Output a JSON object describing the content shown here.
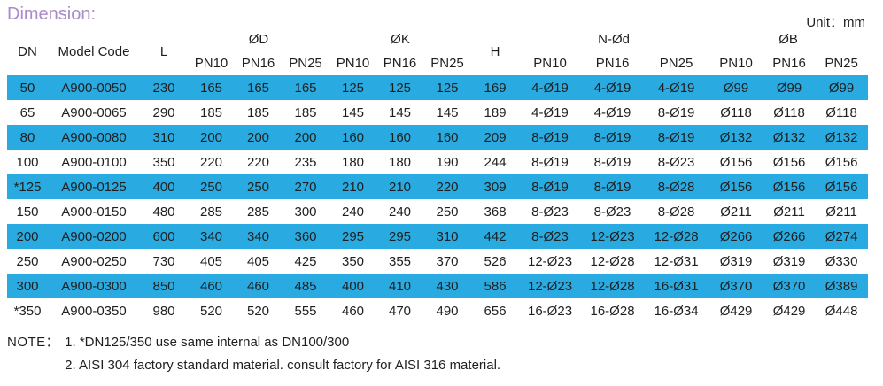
{
  "title": "Dimension:",
  "unit_label": "Unit：mm",
  "colors": {
    "row_highlight": "#29abe2",
    "title_color": "#a88bc9",
    "text_color": "#1f1f1f"
  },
  "table": {
    "headers": {
      "dn": "DN",
      "model_code": "Model Code",
      "l": "L",
      "od": "ØD",
      "ok": "ØK",
      "h": "H",
      "nod": "N-Ød",
      "ob": "ØB"
    },
    "pn_labels": [
      "PN10",
      "PN16",
      "PN25"
    ],
    "rows": [
      {
        "dn": "50",
        "model": "A900-0050",
        "l": "230",
        "od": [
          "165",
          "165",
          "165"
        ],
        "ok": [
          "125",
          "125",
          "125"
        ],
        "h": "169",
        "nod": [
          "4-Ø19",
          "4-Ø19",
          "4-Ø19"
        ],
        "ob": [
          "Ø99",
          "Ø99",
          "Ø99"
        ],
        "highlight": true
      },
      {
        "dn": "65",
        "model": "A900-0065",
        "l": "290",
        "od": [
          "185",
          "185",
          "185"
        ],
        "ok": [
          "145",
          "145",
          "145"
        ],
        "h": "189",
        "nod": [
          "4-Ø19",
          "4-Ø19",
          "8-Ø19"
        ],
        "ob": [
          "Ø118",
          "Ø118",
          "Ø118"
        ],
        "highlight": false
      },
      {
        "dn": "80",
        "model": "A900-0080",
        "l": "310",
        "od": [
          "200",
          "200",
          "200"
        ],
        "ok": [
          "160",
          "160",
          "160"
        ],
        "h": "209",
        "nod": [
          "8-Ø19",
          "8-Ø19",
          "8-Ø19"
        ],
        "ob": [
          "Ø132",
          "Ø132",
          "Ø132"
        ],
        "highlight": true
      },
      {
        "dn": "100",
        "model": "A900-0100",
        "l": "350",
        "od": [
          "220",
          "220",
          "235"
        ],
        "ok": [
          "180",
          "180",
          "190"
        ],
        "h": "244",
        "nod": [
          "8-Ø19",
          "8-Ø19",
          "8-Ø23"
        ],
        "ob": [
          "Ø156",
          "Ø156",
          "Ø156"
        ],
        "highlight": false
      },
      {
        "dn": "*125",
        "model": "A900-0125",
        "l": "400",
        "od": [
          "250",
          "250",
          "270"
        ],
        "ok": [
          "210",
          "210",
          "220"
        ],
        "h": "309",
        "nod": [
          "8-Ø19",
          "8-Ø19",
          "8-Ø28"
        ],
        "ob": [
          "Ø156",
          "Ø156",
          "Ø156"
        ],
        "highlight": true
      },
      {
        "dn": "150",
        "model": "A900-0150",
        "l": "480",
        "od": [
          "285",
          "285",
          "300"
        ],
        "ok": [
          "240",
          "240",
          "250"
        ],
        "h": "368",
        "nod": [
          "8-Ø23",
          "8-Ø23",
          "8-Ø28"
        ],
        "ob": [
          "Ø211",
          "Ø211",
          "Ø211"
        ],
        "highlight": false
      },
      {
        "dn": "200",
        "model": "A900-0200",
        "l": "600",
        "od": [
          "340",
          "340",
          "360"
        ],
        "ok": [
          "295",
          "295",
          "310"
        ],
        "h": "442",
        "nod": [
          "8-Ø23",
          "12-Ø23",
          "12-Ø28"
        ],
        "ob": [
          "Ø266",
          "Ø266",
          "Ø274"
        ],
        "highlight": true
      },
      {
        "dn": "250",
        "model": "A900-0250",
        "l": "730",
        "od": [
          "405",
          "405",
          "425"
        ],
        "ok": [
          "350",
          "355",
          "370"
        ],
        "h": "526",
        "nod": [
          "12-Ø23",
          "12-Ø28",
          "12-Ø31"
        ],
        "ob": [
          "Ø319",
          "Ø319",
          "Ø330"
        ],
        "highlight": false
      },
      {
        "dn": "300",
        "model": "A900-0300",
        "l": "850",
        "od": [
          "460",
          "460",
          "485"
        ],
        "ok": [
          "400",
          "410",
          "430"
        ],
        "h": "586",
        "nod": [
          "12-Ø23",
          "12-Ø28",
          "16-Ø31"
        ],
        "ob": [
          "Ø370",
          "Ø370",
          "Ø389"
        ],
        "highlight": true
      },
      {
        "dn": "*350",
        "model": "A900-0350",
        "l": "980",
        "od": [
          "520",
          "520",
          "555"
        ],
        "ok": [
          "460",
          "470",
          "490"
        ],
        "h": "656",
        "nod": [
          "16-Ø23",
          "16-Ø28",
          "16-Ø34"
        ],
        "ob": [
          "Ø429",
          "Ø429",
          "Ø448"
        ],
        "highlight": false
      }
    ]
  },
  "notes": {
    "label": "NOTE：",
    "lines": [
      "1. *DN125/350 use same internal as DN100/300",
      "2. AISI 304 factory standard material. consult factory for AISI 316 material."
    ]
  }
}
